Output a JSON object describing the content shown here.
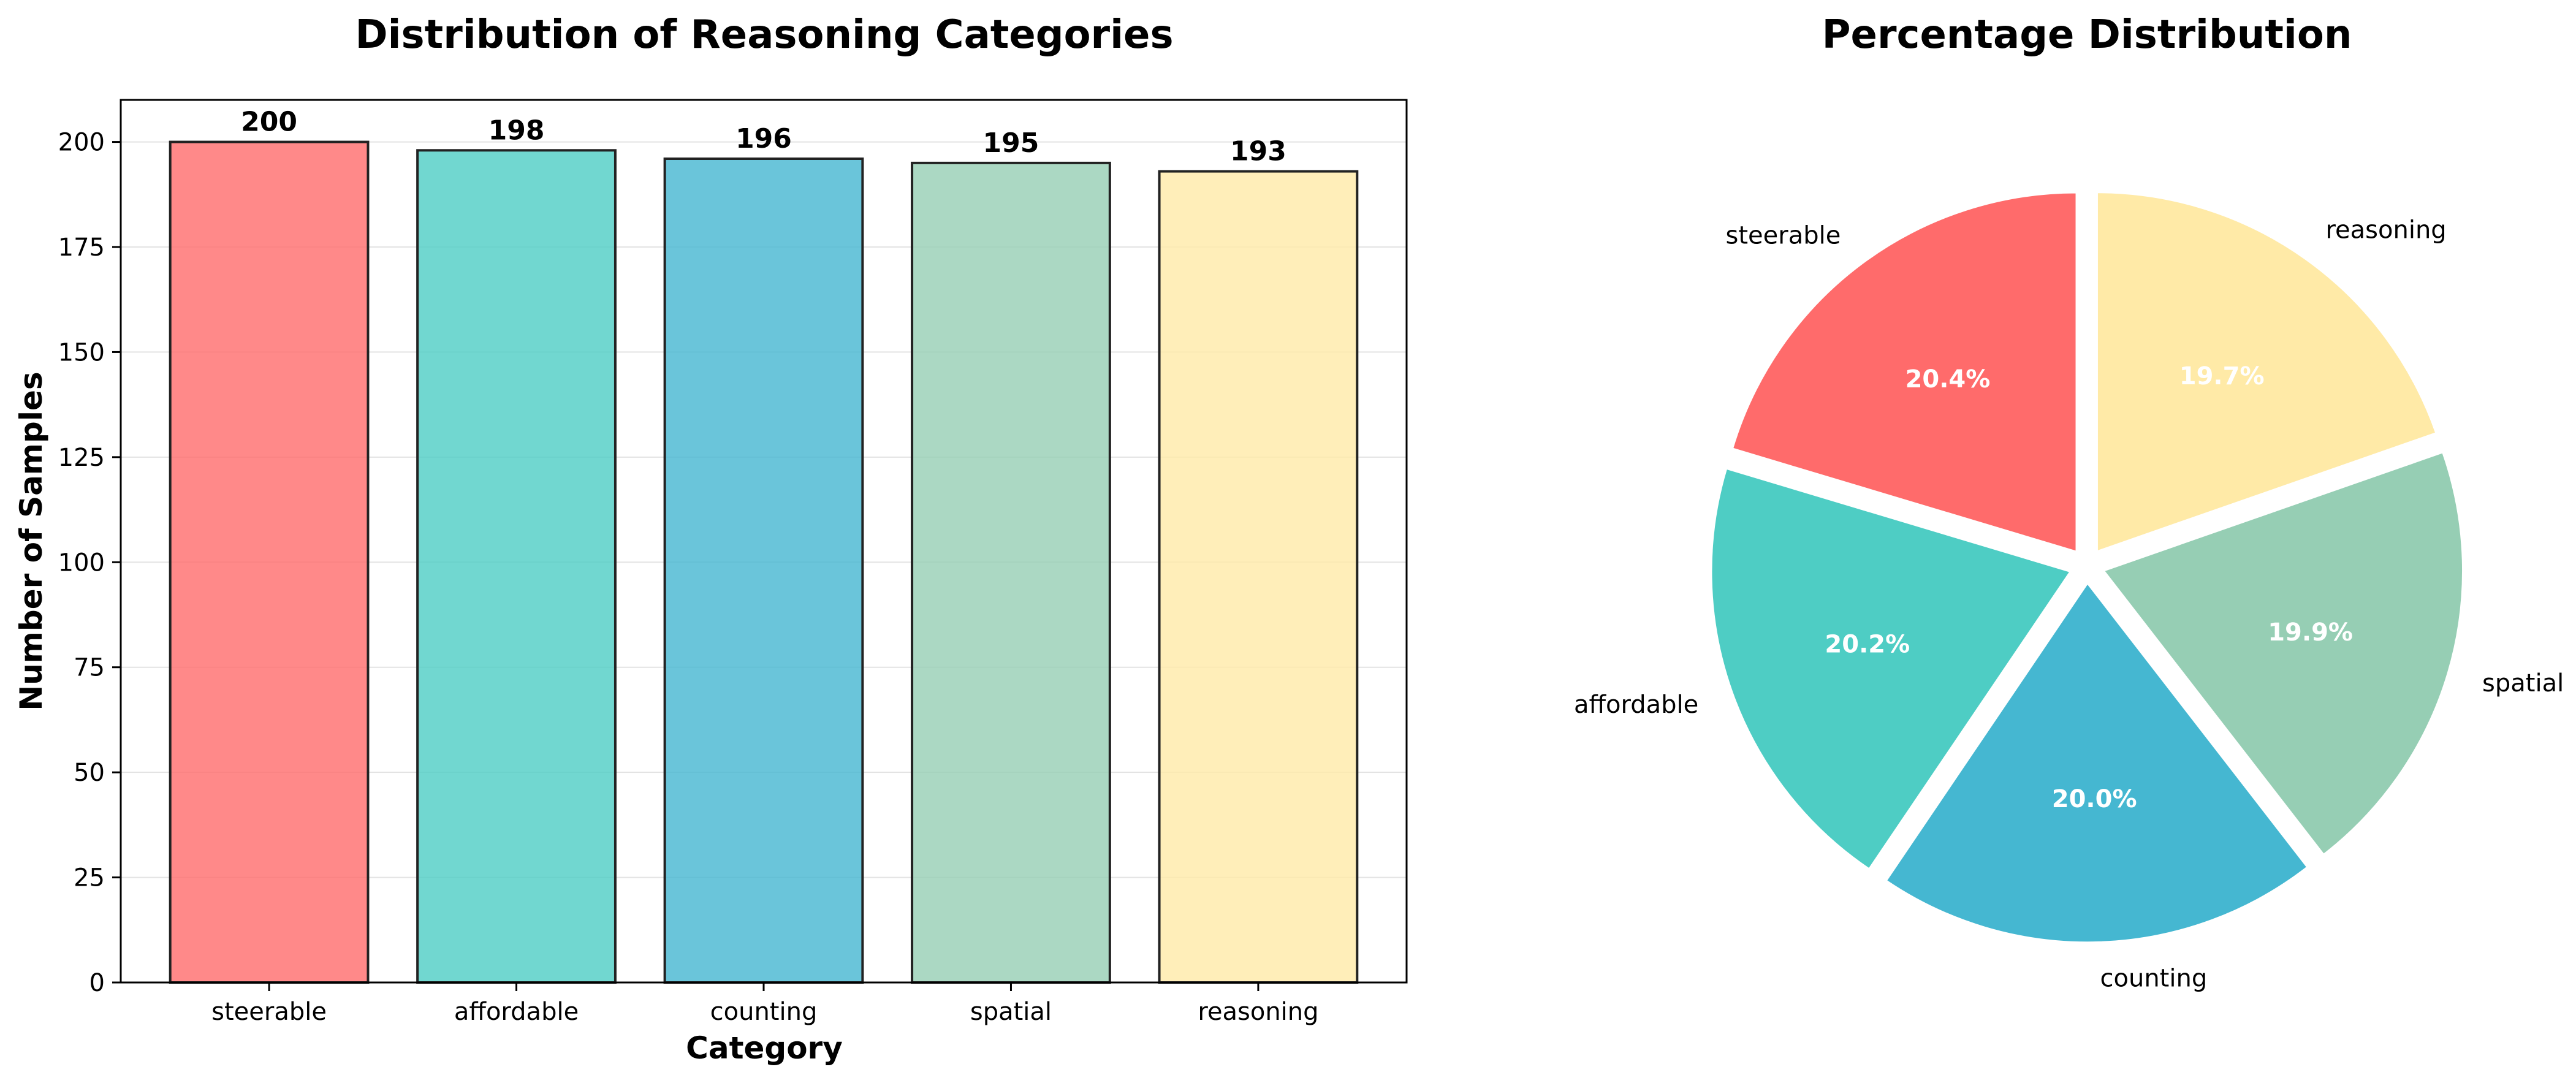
{
  "chart_data": [
    {
      "type": "bar",
      "title": "Distribution of Reasoning Categories",
      "xlabel": "Category",
      "ylabel": "Number of Samples",
      "categories": [
        "steerable",
        "affordable",
        "counting",
        "spatial",
        "reasoning"
      ],
      "values": [
        200,
        198,
        196,
        195,
        193
      ],
      "value_labels": [
        "200",
        "198",
        "196",
        "195",
        "193"
      ],
      "ylim": [
        0,
        210
      ],
      "yticks": [
        0,
        25,
        50,
        75,
        100,
        125,
        150,
        175,
        200
      ],
      "ytick_labels": [
        "0",
        "25",
        "50",
        "75",
        "100",
        "125",
        "150",
        "175",
        "200"
      ],
      "grid": "horizontal",
      "colors": [
        "#FF6B6B",
        "#4ECDC4",
        "#45B7D1",
        "#96CEB4",
        "#FFEAA7"
      ]
    },
    {
      "type": "pie",
      "title": "Percentage Distribution",
      "labels": [
        "steerable",
        "affordable",
        "counting",
        "spatial",
        "reasoning"
      ],
      "values": [
        200,
        198,
        196,
        195,
        193
      ],
      "percent_labels": [
        "20.4%",
        "20.2%",
        "20.0%",
        "19.9%",
        "19.7%"
      ],
      "start_angle_deg": 90,
      "direction": "counterclockwise",
      "exploded": true,
      "colors": [
        "#FF6B6B",
        "#4ECDC4",
        "#45B7D1",
        "#96CEB4",
        "#FFEAA7"
      ]
    }
  ]
}
